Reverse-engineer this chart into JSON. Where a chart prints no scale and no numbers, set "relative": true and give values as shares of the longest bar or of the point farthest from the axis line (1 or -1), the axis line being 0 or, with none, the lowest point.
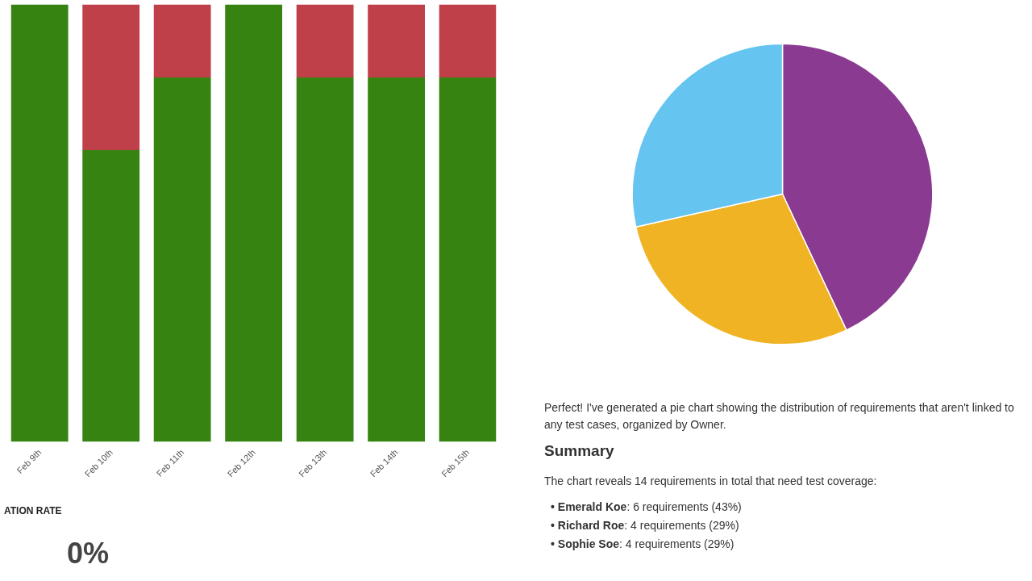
{
  "chart_data": [
    {
      "type": "bar",
      "stacked": true,
      "relative": true,
      "categories": [
        "Feb 9th",
        "Feb 10th",
        "Feb 11th",
        "Feb 12th",
        "Feb 13th",
        "Feb 14th",
        "Feb 15th"
      ],
      "series": [
        {
          "color": "#368312",
          "values": [
            1,
            0.667,
            0.833,
            1,
            0.833,
            0.833,
            0.833
          ]
        },
        {
          "color": "#c0404a",
          "values": [
            0,
            0.333,
            0.167,
            0,
            0.167,
            0.167,
            0.167
          ]
        }
      ]
    },
    {
      "type": "other",
      "title": "ATION RATE",
      "annotations": [
        "0%"
      ]
    },
    {
      "type": "pie",
      "categories": [
        null,
        null,
        null
      ],
      "values": [
        43,
        28.5,
        28.5
      ],
      "colors": [
        "#8a3a91",
        "#f0b323",
        "#66c4f0"
      ]
    },
    {
      "type": "other",
      "annotations": [
        "Perfect! I've generated a pie chart showing the distribution of requirements that aren't linked to any test cases, organized by Owner.",
        "Summary",
        "The chart reveals 14 requirements in total that need test coverage:",
        "• Emerald Koe: 6 requirements (43%)",
        "• Richard Roe: 4 requirements (29%)",
        "• Sophie Soe: 4 requirements (29%)"
      ]
    }
  ]
}
